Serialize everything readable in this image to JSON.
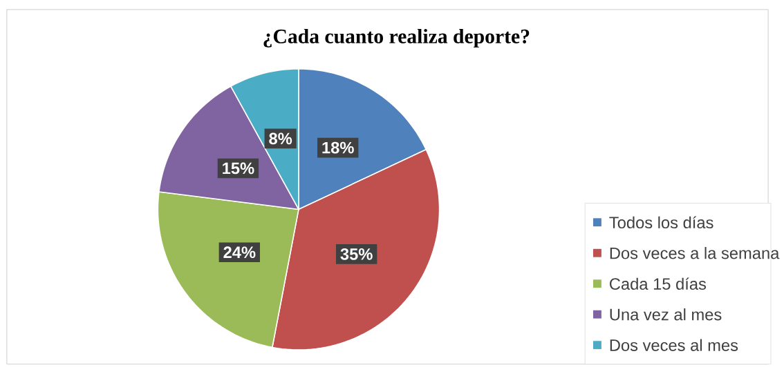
{
  "chart_data": {
    "type": "pie",
    "title": "¿Cada cuanto realiza deporte?",
    "categories": [
      "Todos los días",
      "Dos veces a la semana",
      "Cada 15 días",
      "Una vez al mes",
      "Dos veces al mes"
    ],
    "values": [
      18,
      35,
      24,
      15,
      8
    ],
    "value_labels": [
      "18%",
      "35%",
      "24%",
      "15%",
      "8%"
    ],
    "colors": [
      "#4f81bd",
      "#c0504d",
      "#9bbb59",
      "#8064a2",
      "#4bacc6"
    ],
    "legend": "right"
  }
}
